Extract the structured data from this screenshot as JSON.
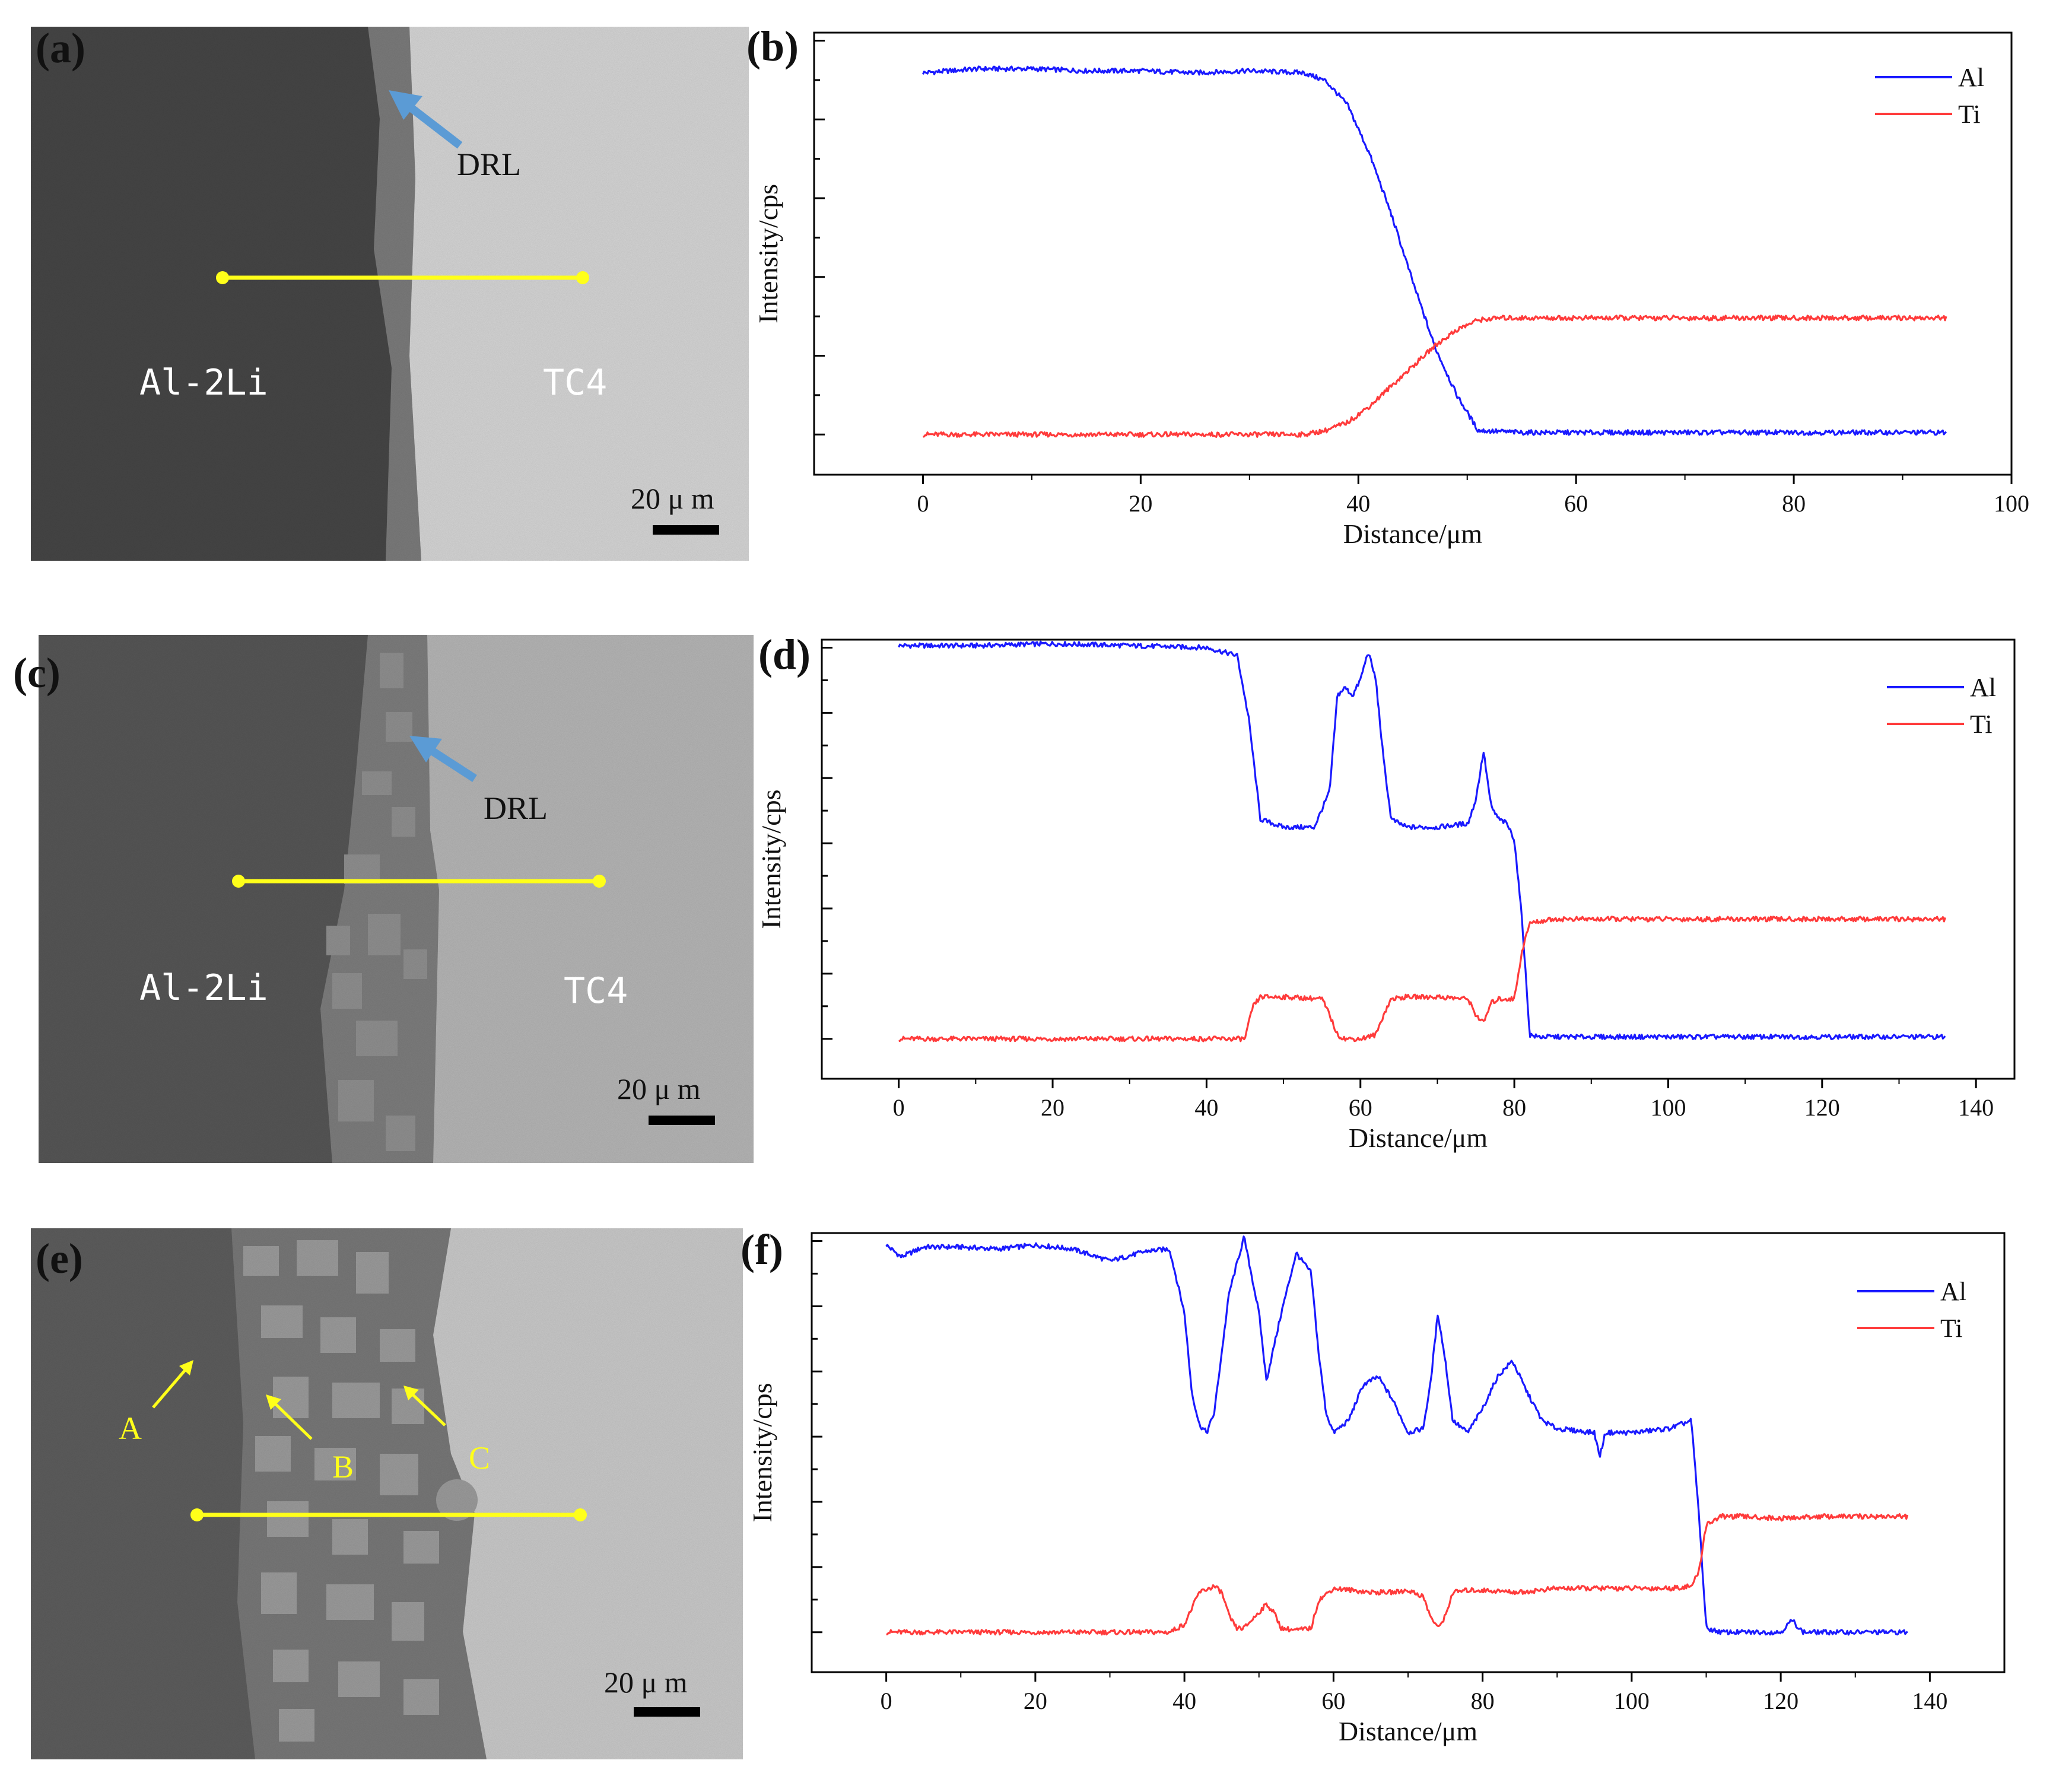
{
  "colors": {
    "al": "#1a1aff",
    "ti": "#ff3b3b",
    "trace": "#ffff1a",
    "arrow": "#5b9bd5",
    "marker": "#ffff1a",
    "text_dark": "#111111",
    "text_light": "#ffffff"
  },
  "panels": {
    "a": {
      "label": "(a)",
      "left_label": "Al-2Li",
      "right_label": "TC4",
      "layer_label": "DRL",
      "scale_label": "20 μ m"
    },
    "c": {
      "label": "(c)",
      "left_label": "Al-2Li",
      "right_label": "TC4",
      "layer_label": "DRL",
      "scale_label": "20 μ m"
    },
    "e": {
      "label": "(e)",
      "scale_label": "20 μ m",
      "points": [
        "A",
        "B",
        "C"
      ]
    }
  },
  "chart_data": [
    {
      "panel_label": "(b)",
      "type": "line",
      "xlabel": "Distance/μm",
      "ylabel": "Intensity/cps",
      "xlim": [
        -10,
        100
      ],
      "xticks": [
        0,
        20,
        40,
        60,
        80,
        100
      ],
      "xtick_labels": [
        "0",
        "20",
        "40",
        "60",
        "80",
        "100"
      ],
      "ylim": [
        -0.1,
        1.0
      ],
      "y_tick_count": 5,
      "legend": "top-right",
      "series": [
        {
          "name": "Al",
          "color_key": "al",
          "x": [
            0,
            5,
            10,
            15,
            20,
            25,
            30,
            35,
            37,
            39,
            41,
            43,
            45,
            47,
            49,
            51,
            55,
            60,
            70,
            80,
            90,
            94
          ],
          "y": [
            0.9,
            0.91,
            0.91,
            0.905,
            0.905,
            0.9,
            0.905,
            0.9,
            0.88,
            0.82,
            0.7,
            0.55,
            0.38,
            0.22,
            0.1,
            0.01,
            0.005,
            0.005,
            0.005,
            0.005,
            0.005,
            0.005
          ]
        },
        {
          "name": "Ti",
          "color_key": "ti",
          "x": [
            0,
            10,
            20,
            30,
            35,
            37,
            39,
            41,
            43,
            45,
            47,
            49,
            51,
            53,
            55,
            60,
            70,
            80,
            90,
            94
          ],
          "y": [
            0.0,
            0.0,
            0.0,
            0.0,
            0.0,
            0.01,
            0.03,
            0.07,
            0.12,
            0.17,
            0.22,
            0.26,
            0.285,
            0.29,
            0.29,
            0.29,
            0.29,
            0.29,
            0.29,
            0.29
          ]
        }
      ]
    },
    {
      "panel_label": "(d)",
      "type": "line",
      "xlabel": "Distance/μm",
      "ylabel": "Intensity/cps",
      "xlim": [
        -10,
        145
      ],
      "xticks": [
        0,
        20,
        40,
        60,
        80,
        100,
        120,
        140
      ],
      "xtick_labels": [
        "0",
        "20",
        "40",
        "60",
        "80",
        "100",
        "120",
        "140"
      ],
      "ylim": [
        -0.1,
        1.0
      ],
      "y_tick_count": 6,
      "legend": "top-right",
      "series": [
        {
          "name": "Al",
          "color_key": "al",
          "x": [
            0,
            10,
            20,
            30,
            40,
            44,
            45.5,
            47,
            50,
            54,
            56,
            57,
            58,
            59,
            60,
            61,
            62,
            63,
            64,
            66,
            70,
            74,
            75,
            76,
            77,
            78,
            79,
            80,
            81,
            82,
            83,
            90,
            100,
            110,
            120,
            130,
            136
          ],
          "y": [
            0.985,
            0.985,
            0.99,
            0.985,
            0.98,
            0.96,
            0.8,
            0.55,
            0.53,
            0.53,
            0.62,
            0.86,
            0.88,
            0.86,
            0.9,
            0.97,
            0.9,
            0.7,
            0.55,
            0.53,
            0.53,
            0.54,
            0.6,
            0.72,
            0.58,
            0.55,
            0.54,
            0.5,
            0.3,
            0.01,
            0.005,
            0.005,
            0.005,
            0.005,
            0.005,
            0.005,
            0.005
          ]
        },
        {
          "name": "Ti",
          "color_key": "ti",
          "x": [
            0,
            10,
            20,
            30,
            40,
            45,
            46,
            47,
            50,
            55,
            56,
            57,
            58,
            60,
            62,
            63,
            64,
            66,
            70,
            74,
            75,
            76,
            77,
            78,
            80,
            81,
            82,
            85,
            90,
            100,
            110,
            120,
            130,
            136
          ],
          "y": [
            0.0,
            0.0,
            0.0,
            0.0,
            0.0,
            0.0,
            0.08,
            0.105,
            0.105,
            0.1,
            0.06,
            0.01,
            0.0,
            0.0,
            0.01,
            0.06,
            0.1,
            0.105,
            0.105,
            0.1,
            0.06,
            0.04,
            0.09,
            0.1,
            0.1,
            0.22,
            0.29,
            0.3,
            0.3,
            0.3,
            0.3,
            0.3,
            0.3,
            0.3
          ]
        }
      ]
    },
    {
      "panel_label": "(f)",
      "type": "line",
      "xlabel": "Distance/μm",
      "ylabel": "Intensity/cps",
      "xlim": [
        -10,
        150
      ],
      "xticks": [
        0,
        20,
        40,
        60,
        80,
        100,
        120,
        140
      ],
      "xtick_labels": [
        "0",
        "20",
        "40",
        "60",
        "80",
        "100",
        "120",
        "140"
      ],
      "ylim": [
        -0.1,
        1.0
      ],
      "y_tick_count": 6,
      "legend": "top-right",
      "series": [
        {
          "name": "Al",
          "color_key": "al",
          "x": [
            0,
            2,
            5,
            10,
            15,
            20,
            25,
            30,
            35,
            38,
            40,
            41,
            42,
            43,
            44,
            46,
            48,
            50,
            51,
            53,
            55,
            57,
            58,
            59,
            60,
            62,
            64,
            66,
            68,
            70,
            72,
            73,
            74,
            75,
            76,
            78,
            80,
            82,
            84,
            86,
            88,
            90,
            95,
            95.7,
            96.5,
            100,
            105,
            108,
            109,
            110,
            112,
            115,
            120,
            121.5,
            123,
            130,
            137
          ],
          "y": [
            0.97,
            0.94,
            0.965,
            0.965,
            0.96,
            0.97,
            0.96,
            0.93,
            0.955,
            0.96,
            0.8,
            0.6,
            0.52,
            0.5,
            0.55,
            0.85,
            0.99,
            0.8,
            0.63,
            0.8,
            0.95,
            0.9,
            0.7,
            0.55,
            0.5,
            0.53,
            0.62,
            0.64,
            0.58,
            0.5,
            0.51,
            0.62,
            0.8,
            0.68,
            0.53,
            0.5,
            0.56,
            0.64,
            0.68,
            0.6,
            0.53,
            0.51,
            0.5,
            0.44,
            0.5,
            0.5,
            0.51,
            0.53,
            0.3,
            0.01,
            0.0,
            0.0,
            0.0,
            0.03,
            0.0,
            0.0,
            0.0
          ]
        },
        {
          "name": "Ti",
          "color_key": "ti",
          "x": [
            0,
            10,
            20,
            30,
            38,
            40,
            42,
            44,
            45,
            46,
            47,
            48,
            50,
            51,
            52,
            53,
            55,
            57,
            58,
            60,
            65,
            68,
            70,
            72,
            73,
            74,
            75,
            76,
            78,
            80,
            85,
            90,
            95,
            100,
            105,
            108,
            109,
            110,
            112,
            115,
            120,
            125,
            130,
            137
          ],
          "y": [
            0.0,
            0.0,
            0.0,
            0.0,
            0.0,
            0.02,
            0.1,
            0.115,
            0.1,
            0.04,
            0.01,
            0.01,
            0.05,
            0.07,
            0.05,
            0.01,
            0.005,
            0.01,
            0.08,
            0.11,
            0.1,
            0.1,
            0.105,
            0.09,
            0.04,
            0.01,
            0.04,
            0.1,
            0.105,
            0.105,
            0.1,
            0.11,
            0.11,
            0.11,
            0.11,
            0.115,
            0.15,
            0.27,
            0.29,
            0.29,
            0.285,
            0.29,
            0.29,
            0.29
          ]
        }
      ]
    }
  ]
}
